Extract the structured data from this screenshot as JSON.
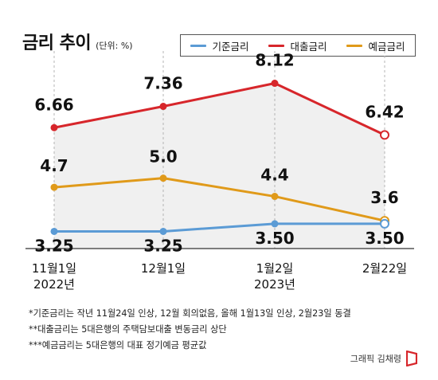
{
  "header": {
    "title": "금리 추이",
    "unit": "(단위: %)"
  },
  "legend": [
    {
      "label": "기준금리",
      "color": "#5b9bd5"
    },
    {
      "label": "대출금리",
      "color": "#d7262b"
    },
    {
      "label": "예금금리",
      "color": "#e09a1a"
    }
  ],
  "chart_data": {
    "type": "line",
    "categories": [
      "11월1일\n2022년",
      "12월1일",
      "1월2일\n2023년",
      "2월22일"
    ],
    "ylim": [
      3.0,
      8.5
    ],
    "grid": false,
    "legend_position": "top-right",
    "series": [
      {
        "name": "대출금리",
        "color": "#d7262b",
        "values": [
          6.66,
          7.36,
          8.12,
          6.42
        ],
        "labels": [
          "6.66",
          "7.36",
          "8.12",
          "6.42"
        ]
      },
      {
        "name": "예금금리",
        "color": "#e09a1a",
        "values": [
          4.7,
          5.0,
          4.4,
          3.6
        ],
        "labels": [
          "4.7",
          "5.0",
          "4.4",
          "3.6"
        ]
      },
      {
        "name": "기준금리",
        "color": "#5b9bd5",
        "values": [
          3.25,
          3.25,
          3.5,
          3.5
        ],
        "labels": [
          "3.25",
          "3.25",
          "3.50",
          "3.50"
        ]
      }
    ]
  },
  "notes": [
    "*기준금리는 작년 11월24일 인상, 12월 회의없음, 올해 1월13일 인상, 2월23일 동결",
    "**대출금리는 5대은행의 주택담보대출 변동금리 상단",
    "***예금금리는 5대은행의 대표 정기예금 평균값"
  ],
  "credit": "그래픽 김채령"
}
